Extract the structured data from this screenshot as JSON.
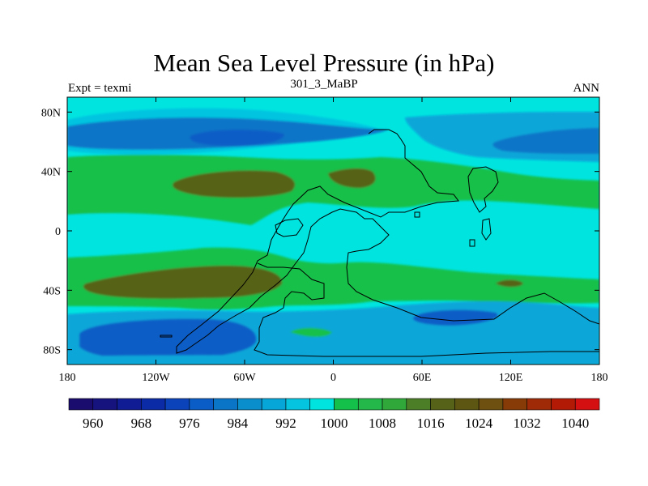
{
  "chart_data": {
    "type": "heatmap",
    "title": "Mean Sea Level Pressure (in hPa)",
    "subtitle": "301_3_MaBP",
    "left_label": "Expt = texmi",
    "right_label": "ANN",
    "projection": "cylindrical equidistant",
    "xlim": [
      -180,
      180
    ],
    "ylim": [
      -90,
      90
    ],
    "x_ticks": [
      {
        "value": -180,
        "label": "180"
      },
      {
        "value": -120,
        "label": "120W"
      },
      {
        "value": -60,
        "label": "60W"
      },
      {
        "value": 0,
        "label": "0"
      },
      {
        "value": 60,
        "label": "60E"
      },
      {
        "value": 120,
        "label": "120E"
      },
      {
        "value": 180,
        "label": "180"
      }
    ],
    "y_ticks": [
      {
        "value": 80,
        "label": "80N"
      },
      {
        "value": 40,
        "label": "40N"
      },
      {
        "value": 0,
        "label": "0"
      },
      {
        "value": -40,
        "label": "40S"
      },
      {
        "value": -80,
        "label": "80S"
      }
    ],
    "colorbar": {
      "units": "hPa",
      "levels": [
        956,
        960,
        964,
        968,
        972,
        976,
        980,
        984,
        988,
        992,
        996,
        1000,
        1004,
        1008,
        1012,
        1016,
        1020,
        1024,
        1028,
        1032,
        1036,
        1040,
        1044
      ],
      "labels": [
        "960",
        "968",
        "976",
        "984",
        "992",
        "1000",
        "1008",
        "1016",
        "1024",
        "1032",
        "1040"
      ],
      "label_values": [
        960,
        968,
        976,
        984,
        992,
        1000,
        1008,
        1016,
        1024,
        1032,
        1040
      ],
      "colors": [
        "#1a0b6e",
        "#16137f",
        "#101c94",
        "#0b2aa6",
        "#0a43ba",
        "#0a5dc6",
        "#0a75c7",
        "#0a8ecc",
        "#07a6d9",
        "#05c4e0",
        "#00e4e0",
        "#14c04a",
        "#24b84a",
        "#30a83a",
        "#4c7e28",
        "#566218",
        "#5d5612",
        "#6e5010",
        "#873c08",
        "#9e2a08",
        "#b31a06",
        "#d51010"
      ]
    },
    "background_range": {
      "min": 1000,
      "max": 1004,
      "color": "#00e4e0"
    },
    "regions": [
      {
        "name": "north-pacific-low",
        "range": [
          992,
          996
        ],
        "color": "#05c4e0"
      },
      {
        "name": "north-pacific-low-core",
        "range": [
          984,
          992
        ],
        "color": "#0a75c7"
      },
      {
        "name": "north-pacific-deep-core",
        "range": [
          976,
          984
        ],
        "color": "#0a5dc6"
      },
      {
        "name": "arctic-low",
        "range": [
          992,
          996
        ],
        "color": "#07a6d9"
      },
      {
        "name": "asian-low",
        "range": [
          984,
          992
        ],
        "color": "#0a75c7"
      },
      {
        "name": "northern-subtropical-belt",
        "range": [
          1004,
          1012
        ],
        "color": "#14c04a"
      },
      {
        "name": "north-subtropical-high",
        "range": [
          1012,
          1020
        ],
        "color": "#566218"
      },
      {
        "name": "north-atlantic-high",
        "range": [
          1012,
          1016
        ],
        "color": "#566218"
      },
      {
        "name": "southern-subtropical-belt",
        "range": [
          1004,
          1012
        ],
        "color": "#14c04a"
      },
      {
        "name": "south-subtropical-high",
        "range": [
          1012,
          1020
        ],
        "color": "#566218"
      },
      {
        "name": "indian-ocean-high",
        "range": [
          1012,
          1016
        ],
        "color": "#566218"
      },
      {
        "name": "southern-ocean-low",
        "range": [
          988,
          996
        ],
        "color": "#07a6d9"
      },
      {
        "name": "southern-ocean-low-core",
        "range": [
          976,
          988
        ],
        "color": "#0a5dc6"
      },
      {
        "name": "antarctic-high",
        "range": [
          1004,
          1008
        ],
        "color": "#14c04a"
      }
    ]
  }
}
